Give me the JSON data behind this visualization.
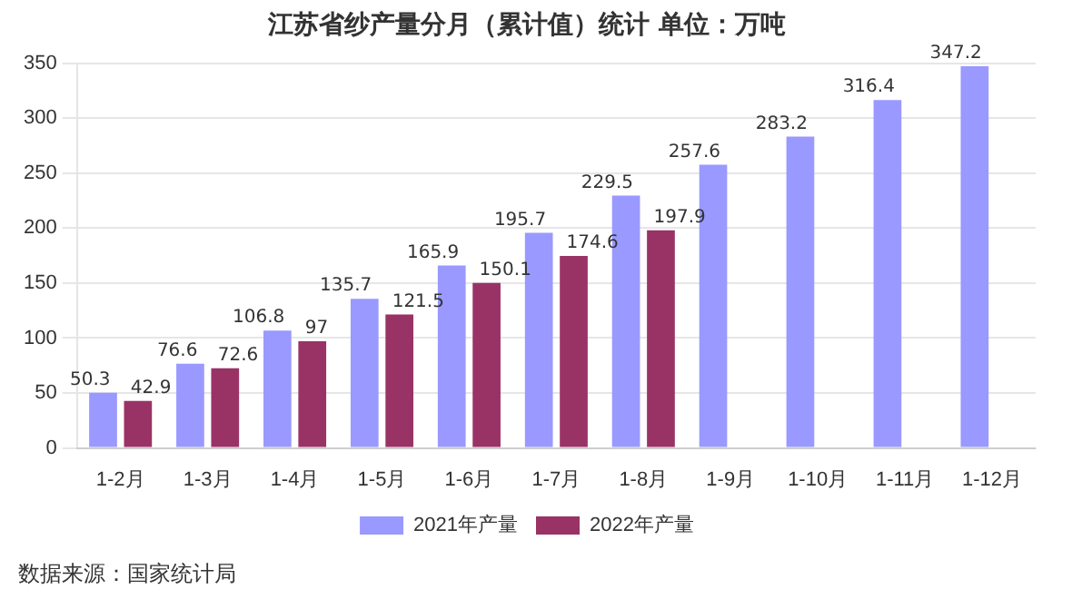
{
  "chart_data": {
    "type": "bar",
    "title": "江苏省纱产量分月（累计值）统计 单位：万吨",
    "categories": [
      "1-2月",
      "1-3月",
      "1-4月",
      "1-5月",
      "1-6月",
      "1-7月",
      "1-8月",
      "1-9月",
      "1-10月",
      "1-11月",
      "1-12月"
    ],
    "series": [
      {
        "name": "2021年产量",
        "color": "#9999ff",
        "values": [
          50.3,
          76.6,
          106.8,
          135.7,
          165.9,
          195.7,
          229.5,
          257.6,
          283.2,
          316.4,
          347.2
        ]
      },
      {
        "name": "2022年产量",
        "color": "#993366",
        "values": [
          42.9,
          72.6,
          97,
          121.5,
          150.1,
          174.6,
          197.9,
          null,
          null,
          null,
          null
        ]
      }
    ],
    "ylim": [
      0,
      350
    ],
    "yticks": [
      0,
      50,
      100,
      150,
      200,
      250,
      300,
      350
    ],
    "grid": "y",
    "legend": "bottom",
    "data_labels": true,
    "annotations": [
      "数据来源：国家统计局"
    ]
  }
}
